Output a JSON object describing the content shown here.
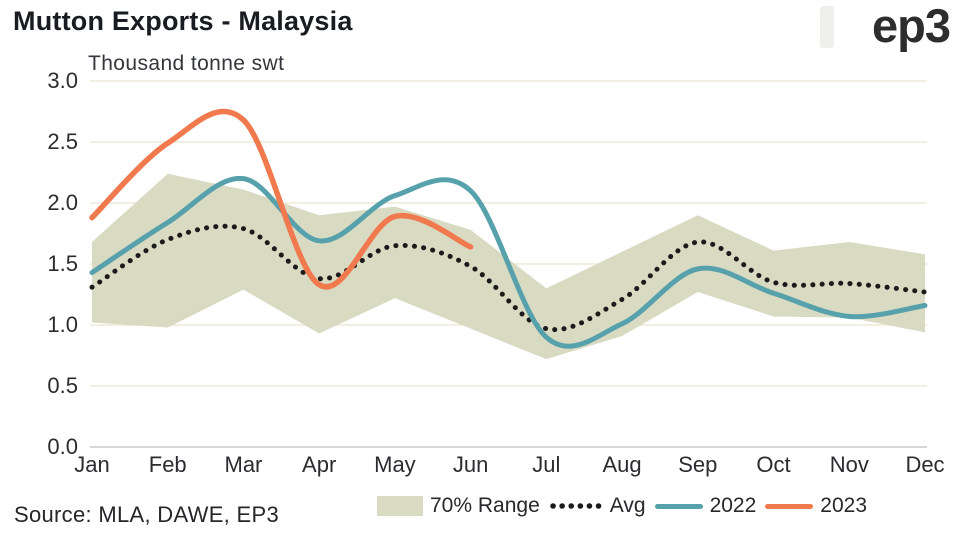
{
  "header": {
    "title": "Mutton Exports - Malaysia",
    "logo_text": "ep3"
  },
  "chart_data": {
    "type": "line",
    "title": "Mutton Exports - Malaysia",
    "unit_label": "Thousand tonne swt",
    "categories": [
      "Jan",
      "Feb",
      "Mar",
      "Apr",
      "May",
      "Jun",
      "Jul",
      "Aug",
      "Sep",
      "Oct",
      "Nov",
      "Dec"
    ],
    "y_ticks": [
      "3.0",
      "2.5",
      "2.0",
      "1.5",
      "1.0",
      "0.5",
      "0.0"
    ],
    "ylim": [
      0.0,
      3.0
    ],
    "grid": true,
    "legend_position": "bottom",
    "series": [
      {
        "name": "70% Range",
        "type": "band",
        "color": "#d9dac2",
        "upper": [
          1.68,
          2.24,
          2.11,
          1.9,
          1.97,
          1.78,
          1.3,
          1.6,
          1.9,
          1.61,
          1.68,
          1.58
        ],
        "lower": [
          1.02,
          0.98,
          1.29,
          0.93,
          1.22,
          0.97,
          0.72,
          0.91,
          1.27,
          1.07,
          1.06,
          0.94
        ]
      },
      {
        "name": "Avg",
        "type": "dotted-line",
        "color": "#1b1b1b",
        "values": [
          1.31,
          1.7,
          1.79,
          1.38,
          1.65,
          1.48,
          0.97,
          1.21,
          1.68,
          1.35,
          1.34,
          1.27
        ]
      },
      {
        "name": "2022",
        "type": "line",
        "color": "#56a1ab",
        "values": [
          1.43,
          1.84,
          2.2,
          1.69,
          2.06,
          2.1,
          0.9,
          1.01,
          1.46,
          1.26,
          1.07,
          1.16
        ]
      },
      {
        "name": "2023",
        "type": "line",
        "color": "#f0794e",
        "values": [
          1.88,
          2.49,
          2.68,
          1.33,
          1.89,
          1.64
        ]
      }
    ]
  },
  "footer": {
    "source": "Source: MLA, DAWE, EP3"
  }
}
